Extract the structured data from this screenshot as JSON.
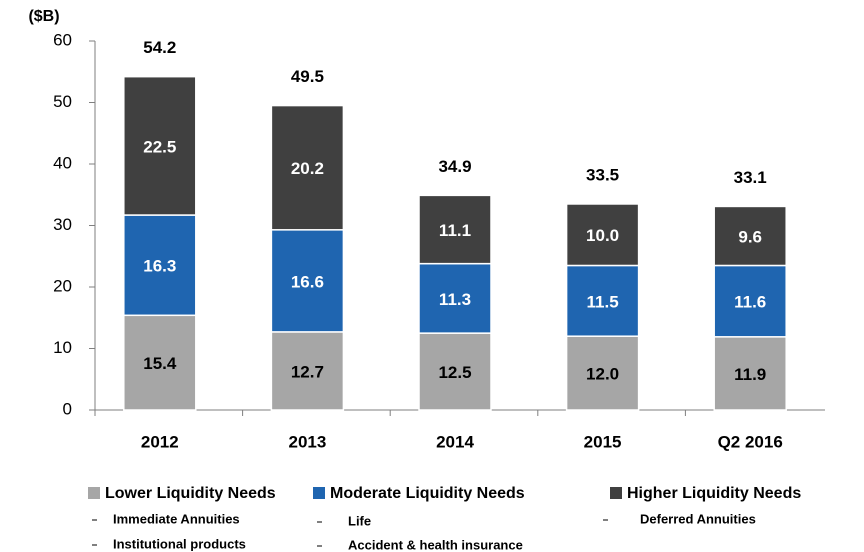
{
  "chart_data": {
    "type": "stacked_bar",
    "y_label": "($B)",
    "categories": [
      "2012",
      "2013",
      "2014",
      "2015",
      "Q2 2016"
    ],
    "series": [
      {
        "name": "Lower Liquidity Needs",
        "color": "#a6a6a6",
        "label_color": "#000000",
        "values": [
          15.4,
          12.7,
          12.5,
          12.0,
          11.9
        ],
        "value_labels": [
          "15.4",
          "12.7",
          "12.5",
          "12.0",
          "11.9"
        ]
      },
      {
        "name": "Moderate Liquidity Needs",
        "color": "#1f65b0",
        "label_color": "#ffffff",
        "values": [
          16.3,
          16.6,
          11.3,
          11.5,
          11.6
        ]
      },
      {
        "name": "Higher Liquidity Needs",
        "color": "#404040",
        "label_color": "#ffffff",
        "values": [
          22.5,
          20.2,
          11.1,
          10.0,
          9.6
        ],
        "value_labels": [
          "22.5",
          "20.2",
          "11.1",
          "10.0",
          "9.6"
        ]
      }
    ],
    "totals": [
      54.2,
      49.5,
      34.9,
      33.5,
      33.1
    ],
    "legend_notes": [
      [
        "Immediate Annuities",
        "Institutional products"
      ],
      [
        "Life",
        "Accident & health insurance"
      ],
      [
        "Deferred Annuities"
      ]
    ],
    "ylim": [
      0,
      60
    ],
    "yticks": [
      0,
      10,
      20,
      30,
      40,
      50,
      60
    ]
  }
}
